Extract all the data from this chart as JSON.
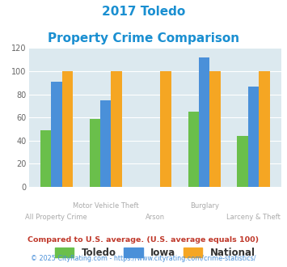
{
  "title_line1": "2017 Toledo",
  "title_line2": "Property Crime Comparison",
  "categories": [
    "All Property Crime",
    "Motor Vehicle Theft",
    "Arson",
    "Burglary",
    "Larceny & Theft"
  ],
  "top_labels": [
    "",
    "Motor Vehicle Theft",
    "",
    "Burglary",
    ""
  ],
  "bottom_labels": [
    "All Property Crime",
    "",
    "Arson",
    "",
    "Larceny & Theft"
  ],
  "toledo_values": [
    49,
    59,
    0,
    65,
    44
  ],
  "iowa_values": [
    91,
    75,
    0,
    112,
    87
  ],
  "national_values": [
    100,
    100,
    100,
    100,
    100
  ],
  "toledo_null": [
    false,
    false,
    true,
    false,
    false
  ],
  "iowa_null": [
    false,
    false,
    true,
    false,
    false
  ],
  "toledo_color": "#6abf4b",
  "iowa_color": "#4a90d9",
  "national_color": "#f5a623",
  "ylim": [
    0,
    120
  ],
  "yticks": [
    0,
    20,
    40,
    60,
    80,
    100,
    120
  ],
  "legend_labels": [
    "Toledo",
    "Iowa",
    "National"
  ],
  "footnote1": "Compared to U.S. average. (U.S. average equals 100)",
  "footnote2": "© 2025 CityRating.com - https://www.cityrating.com/crime-statistics/",
  "bg_color": "#dce9ef",
  "title_color": "#1a8fd1",
  "footnote1_color": "#c0392b",
  "footnote2_color": "#4a90d9",
  "label_color": "#aaaaaa"
}
